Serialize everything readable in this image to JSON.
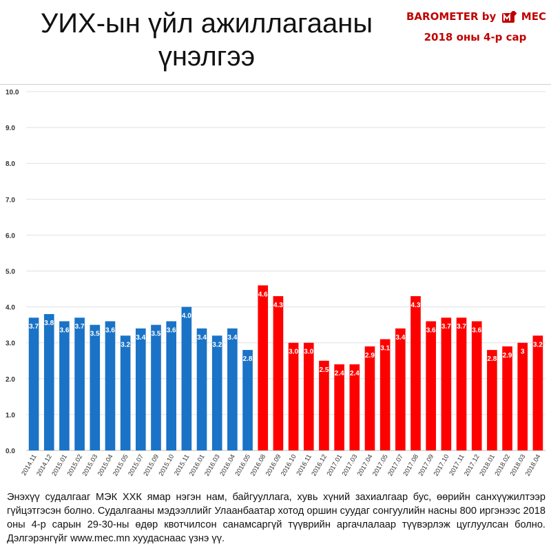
{
  "header": {
    "title_line1": "УИХ-ын үйл ажиллагааны",
    "title_line2": "үнэлгээ",
    "brand_prefix": "BAROMETER by",
    "brand_name": "MEC",
    "period": "2018 оны 4-р сар",
    "brand_color": "#c00000"
  },
  "chart_data": {
    "type": "bar",
    "ylim": [
      0,
      10
    ],
    "yticks": [
      "0.0",
      "1.0",
      "2.0",
      "3.0",
      "4.0",
      "5.0",
      "6.0",
      "7.0",
      "8.0",
      "9.0",
      "10.0"
    ],
    "grid": true,
    "colors": {
      "first_period": "#1a73c6",
      "second_period": "#ff0000",
      "grid": "#e0e0e0"
    },
    "categories": [
      "2014.11",
      "2014.12",
      "2015.01",
      "2015.02",
      "2015.03",
      "2015.04",
      "2015.05",
      "2015.07",
      "2015.09",
      "2015.10",
      "2015.11",
      "2016.01",
      "2016.03",
      "2016.04",
      "2016.05",
      "2016.08",
      "2016.09",
      "2016.10",
      "2016.11",
      "2016.12",
      "2017.01",
      "2017.03",
      "2017.04",
      "2017.05",
      "2017.07",
      "2017.08",
      "2017.09",
      "2017.10",
      "2017.11",
      "2017.12",
      "2018.01",
      "2018.02",
      "2018.03",
      "2018.04"
    ],
    "values": [
      3.7,
      3.8,
      3.6,
      3.7,
      3.5,
      3.6,
      3.2,
      3.4,
      3.5,
      3.6,
      4.0,
      3.4,
      3.2,
      3.4,
      2.8,
      4.6,
      4.3,
      3.0,
      3.0,
      2.5,
      2.4,
      2.4,
      2.9,
      3.1,
      3.4,
      4.3,
      3.6,
      3.7,
      3.7,
      3.6,
      2.8,
      2.9,
      3.0,
      3.2
    ],
    "labels": [
      "3.7",
      "3.8",
      "3.6",
      "3.7",
      "3.5",
      "3.6",
      "3.2",
      "3.4",
      "3.5",
      "3.6",
      "4.0",
      "3.4",
      "3.2",
      "3.4",
      "2.8",
      "4.6",
      "4.3",
      "3.0",
      "3.0",
      "2.5",
      "2.4",
      "2.4",
      "2.9",
      "3.1",
      "3.4",
      "4.3",
      "3.6",
      "3.7",
      "3.7",
      "3.6",
      "2.8",
      "2.9",
      "3",
      "3.2"
    ],
    "series_split_index": 15
  },
  "footnote": "Энэхүү судалгааг МЭК ХХК ямар нэгэн нам, байгууллага, хувь хүний захиалгаар бус, өөрийн санхүүжилтээр гүйцэтгэсэн болно. Судалгааны мэдээллийг Улаанбаатар хотод оршин суудаг сонгуулийн насны 800 иргэнээс 2018 оны 4-р сарын 29-30-ны өдөр квотчилсон санамсаргүй түүврийн аргачлалаар түүвэрлэж цуглуулсан болно. Дэлгэрэнгүйг www.mec.mn хуудаснаас үзнэ үү."
}
